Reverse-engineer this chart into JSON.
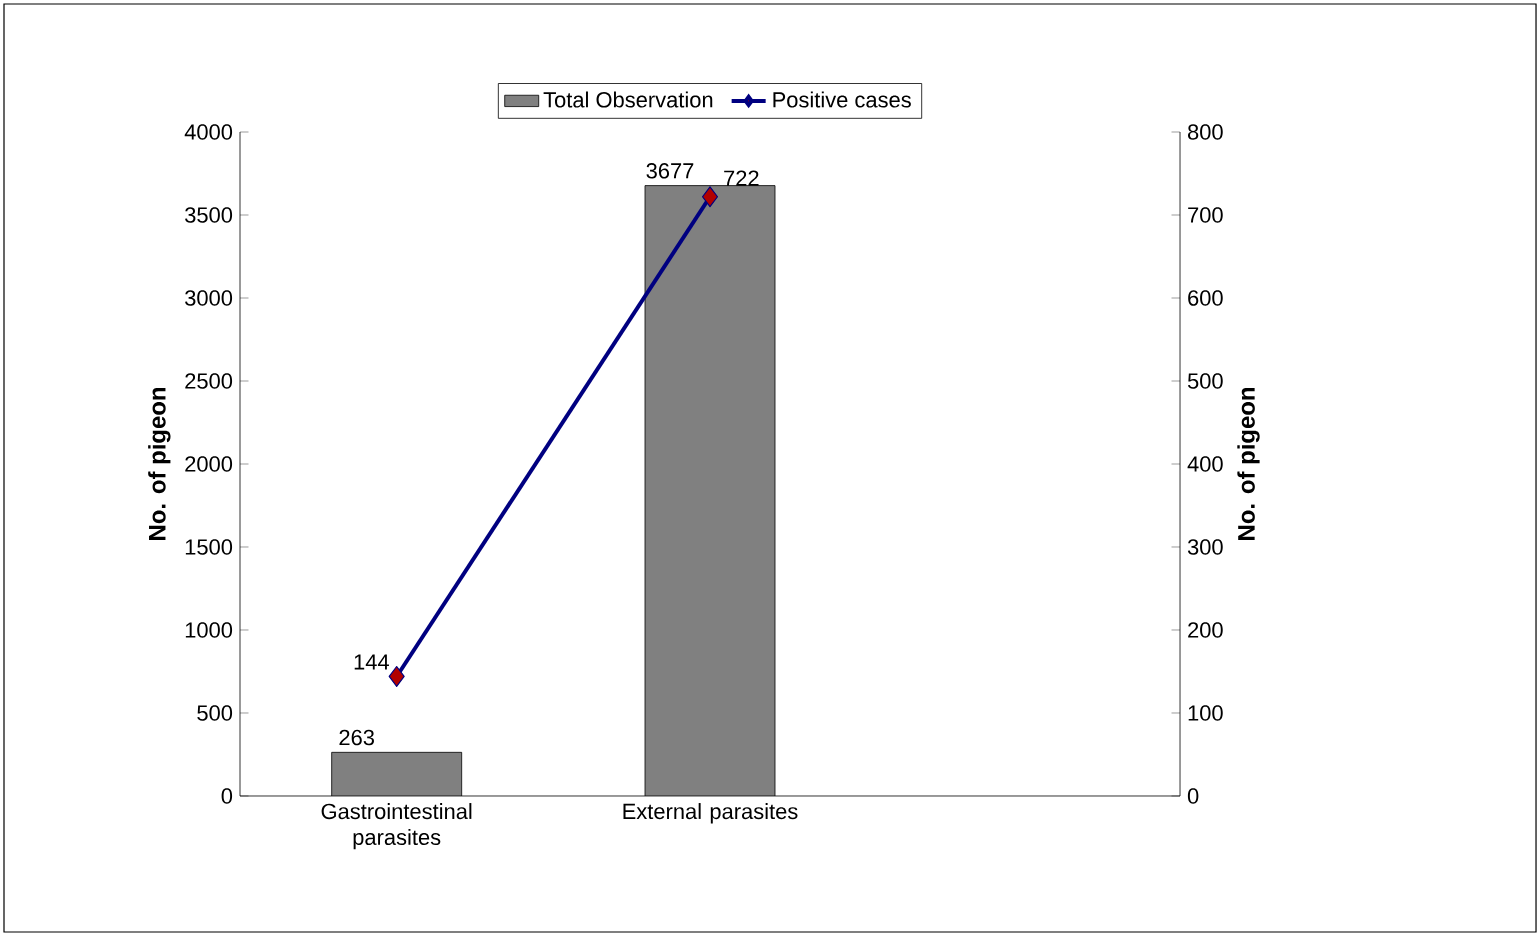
{
  "chart_data": {
    "type": "bar",
    "categories": [
      "Gastrointestinal parasites",
      "External parasites",
      null
    ],
    "series": [
      {
        "name": "Total Observation",
        "color": "#808080",
        "values": [
          263,
          3677,
          null
        ]
      },
      {
        "name": "Positive cases",
        "type": "line",
        "axis": "y2",
        "color": "#000080",
        "marker": "diamond",
        "values": [
          144,
          722,
          null
        ]
      }
    ],
    "ylabel": "No. of pigeon",
    "y2label": "No. of pigeon",
    "ylim": [
      0,
      4000
    ],
    "yticks": [
      0,
      500,
      1000,
      1500,
      2000,
      2500,
      3000,
      3500,
      4000
    ],
    "y2lim": [
      0,
      800
    ],
    "y2ticks": [
      0,
      100,
      200,
      300,
      400,
      500,
      600,
      700,
      800
    ],
    "data_labels": true,
    "legend": "top",
    "grid": false
  }
}
